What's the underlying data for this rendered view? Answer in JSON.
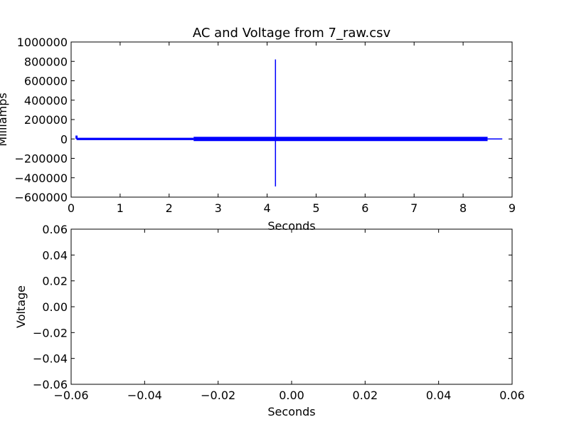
{
  "chart_data": [
    {
      "type": "line",
      "title": "AC and Voltage from 7_raw.csv",
      "xlabel": "Seconds",
      "ylabel": "Milliamps",
      "xlim": [
        0,
        9
      ],
      "ylim": [
        -600000,
        1000000
      ],
      "x_ticks": [
        "0",
        "1",
        "2",
        "3",
        "4",
        "5",
        "6",
        "7",
        "8",
        "9"
      ],
      "y_ticks": [
        "1000000",
        "800000",
        "600000",
        "400000",
        "200000",
        "0",
        "−200000",
        "−400000",
        "−600000"
      ],
      "grid": false,
      "series": [
        {
          "color": "#0000ff",
          "segments": [
            {
              "x": [
                0.1,
                0.1,
                0.12,
                0.12,
                0.12
              ],
              "y": [
                0,
                30000,
                30000,
                -10000,
                0
              ]
            },
            {
              "x": [
                0.12,
                2.5
              ],
              "y": [
                0,
                0
              ]
            },
            {
              "x": [
                2.5,
                8.5
              ],
              "y": [
                0,
                0
              ]
            },
            {
              "x": [
                8.5,
                8.8
              ],
              "y": [
                0,
                0
              ]
            },
            {
              "x": [
                4.17,
                4.17
              ],
              "y": [
                0,
                820000
              ]
            },
            {
              "x": [
                4.17,
                4.17
              ],
              "y": [
                0,
                -490000
              ]
            }
          ],
          "bands": [
            {
              "x": [
                0.12,
                2.5
              ],
              "y": [
                -12000,
                12000
              ]
            },
            {
              "x": [
                2.5,
                8.5
              ],
              "y": [
                -22000,
                22000
              ]
            }
          ]
        }
      ]
    },
    {
      "type": "line",
      "title": "",
      "xlabel": "Seconds",
      "ylabel": "Voltage",
      "xlim": [
        -0.06,
        0.06
      ],
      "ylim": [
        -0.06,
        0.06
      ],
      "x_ticks": [
        "−0.06",
        "−0.04",
        "−0.02",
        "0.00",
        "0.02",
        "0.04",
        "0.06"
      ],
      "y_ticks": [
        "0.06",
        "0.04",
        "0.02",
        "0.00",
        "−0.02",
        "−0.04",
        "−0.06"
      ],
      "grid": false,
      "series": []
    }
  ]
}
